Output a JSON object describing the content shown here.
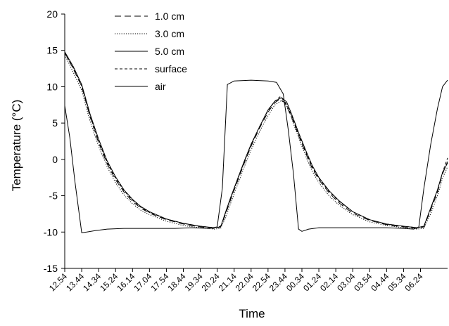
{
  "chart_data": {
    "type": "line",
    "xlabel": "Time",
    "ylabel": "Temperature (°C)",
    "ylim": [
      -15,
      20
    ],
    "yticks": [
      -15,
      -10,
      -5,
      0,
      5,
      10,
      15,
      20
    ],
    "x_tick_labels": [
      "12.54",
      "13.44",
      "14.34",
      "15.24",
      "16.14",
      "17.04",
      "17.54",
      "18.44",
      "19.34",
      "20.24",
      "21.14",
      "22.04",
      "22.54",
      "23.44",
      "00.34",
      "01.24",
      "02.14",
      "03.04",
      "03.54",
      "04.44",
      "05.34",
      "06.24"
    ],
    "xlim": [
      0,
      22.6
    ],
    "legend_position": "top-left",
    "grid": false,
    "series": [
      {
        "name": "1.0 cm",
        "dash": "long-dash",
        "points": [
          [
            0,
            14.7
          ],
          [
            0.5,
            12.5
          ],
          [
            1,
            10.0
          ],
          [
            1.5,
            5.8
          ],
          [
            2,
            2.3
          ],
          [
            2.5,
            -0.6
          ],
          [
            3,
            -2.8
          ],
          [
            3.5,
            -4.5
          ],
          [
            4,
            -5.8
          ],
          [
            4.5,
            -6.7
          ],
          [
            5,
            -7.4
          ],
          [
            6,
            -8.3
          ],
          [
            7,
            -8.9
          ],
          [
            8,
            -9.3
          ],
          [
            8.8,
            -9.5
          ],
          [
            9.2,
            -9.3
          ],
          [
            9.5,
            -7.5
          ],
          [
            9.8,
            -5.5
          ],
          [
            10.2,
            -3.0
          ],
          [
            10.6,
            -0.5
          ],
          [
            11,
            1.8
          ],
          [
            11.5,
            4.3
          ],
          [
            12,
            6.5
          ],
          [
            12.4,
            7.8
          ],
          [
            12.7,
            8.3
          ],
          [
            13,
            7.8
          ],
          [
            13.4,
            5.8
          ],
          [
            13.8,
            3.3
          ],
          [
            14.2,
            1.0
          ],
          [
            14.6,
            -1.2
          ],
          [
            15,
            -2.8
          ],
          [
            15.6,
            -4.6
          ],
          [
            16.2,
            -6.0
          ],
          [
            17,
            -7.4
          ],
          [
            18,
            -8.4
          ],
          [
            19,
            -9.0
          ],
          [
            20,
            -9.3
          ],
          [
            20.8,
            -9.5
          ],
          [
            21.2,
            -9.3
          ],
          [
            21.6,
            -7.0
          ],
          [
            22,
            -4.5
          ],
          [
            22.3,
            -2.0
          ],
          [
            22.6,
            -0.3
          ]
        ]
      },
      {
        "name": "3.0 cm",
        "dash": "dotted",
        "points": [
          [
            0,
            14.4
          ],
          [
            0.5,
            12.0
          ],
          [
            1,
            9.5
          ],
          [
            1.5,
            5.2
          ],
          [
            2,
            1.8
          ],
          [
            2.5,
            -1.0
          ],
          [
            3,
            -3.2
          ],
          [
            3.5,
            -4.9
          ],
          [
            4,
            -6.1
          ],
          [
            4.5,
            -7.0
          ],
          [
            5,
            -7.6
          ],
          [
            6,
            -8.5
          ],
          [
            7,
            -9.1
          ],
          [
            8,
            -9.4
          ],
          [
            8.8,
            -9.6
          ],
          [
            9.2,
            -9.5
          ],
          [
            9.5,
            -8.0
          ],
          [
            9.8,
            -6.0
          ],
          [
            10.2,
            -3.5
          ],
          [
            10.6,
            -1.0
          ],
          [
            11,
            1.3
          ],
          [
            11.5,
            3.8
          ],
          [
            12,
            6.0
          ],
          [
            12.4,
            7.5
          ],
          [
            12.8,
            8.1
          ],
          [
            13.1,
            7.4
          ],
          [
            13.4,
            5.6
          ],
          [
            13.8,
            3.0
          ],
          [
            14.2,
            0.6
          ],
          [
            14.6,
            -1.6
          ],
          [
            15,
            -3.2
          ],
          [
            15.6,
            -5.0
          ],
          [
            16.2,
            -6.3
          ],
          [
            17,
            -7.6
          ],
          [
            18,
            -8.6
          ],
          [
            19,
            -9.1
          ],
          [
            20,
            -9.4
          ],
          [
            20.8,
            -9.6
          ],
          [
            21.2,
            -9.5
          ],
          [
            21.6,
            -7.5
          ],
          [
            22,
            -5.0
          ],
          [
            22.3,
            -2.6
          ],
          [
            22.6,
            -1.0
          ]
        ]
      },
      {
        "name": "5.0 cm",
        "dash": "solid",
        "points": [
          [
            0,
            14.8
          ],
          [
            0.5,
            12.8
          ],
          [
            1,
            10.3
          ],
          [
            1.5,
            6.2
          ],
          [
            2,
            2.8
          ],
          [
            2.5,
            -0.2
          ],
          [
            3,
            -2.4
          ],
          [
            3.5,
            -4.2
          ],
          [
            4,
            -5.5
          ],
          [
            4.5,
            -6.5
          ],
          [
            5,
            -7.2
          ],
          [
            6,
            -8.2
          ],
          [
            7,
            -8.8
          ],
          [
            8,
            -9.2
          ],
          [
            8.8,
            -9.4
          ],
          [
            9.2,
            -9.3
          ],
          [
            9.5,
            -7.2
          ],
          [
            9.8,
            -5.2
          ],
          [
            10.2,
            -2.7
          ],
          [
            10.6,
            -0.2
          ],
          [
            11,
            2.1
          ],
          [
            11.5,
            4.5
          ],
          [
            12,
            6.8
          ],
          [
            12.4,
            8.0
          ],
          [
            12.8,
            8.5
          ],
          [
            13.1,
            7.9
          ],
          [
            13.4,
            6.2
          ],
          [
            13.8,
            3.7
          ],
          [
            14.2,
            1.4
          ],
          [
            14.6,
            -0.8
          ],
          [
            15,
            -2.5
          ],
          [
            15.6,
            -4.3
          ],
          [
            16.2,
            -5.7
          ],
          [
            17,
            -7.2
          ],
          [
            18,
            -8.3
          ],
          [
            19,
            -8.9
          ],
          [
            20,
            -9.2
          ],
          [
            20.8,
            -9.4
          ],
          [
            21.2,
            -9.2
          ],
          [
            21.6,
            -6.7
          ],
          [
            22,
            -4.2
          ],
          [
            22.3,
            -1.8
          ],
          [
            22.6,
            -0.5
          ]
        ]
      },
      {
        "name": "surface",
        "dash": "short-dash",
        "points": [
          [
            0,
            14.6
          ],
          [
            0.5,
            12.6
          ],
          [
            1,
            10.1
          ],
          [
            1.5,
            6.0
          ],
          [
            2,
            2.5
          ],
          [
            2.5,
            -0.4
          ],
          [
            3,
            -2.6
          ],
          [
            3.5,
            -4.3
          ],
          [
            4,
            -5.6
          ],
          [
            4.5,
            -6.6
          ],
          [
            5,
            -7.3
          ],
          [
            6,
            -8.2
          ],
          [
            7,
            -8.8
          ],
          [
            8,
            -9.2
          ],
          [
            8.8,
            -9.4
          ],
          [
            9.2,
            -9.2
          ],
          [
            9.5,
            -7.3
          ],
          [
            9.8,
            -5.3
          ],
          [
            10.2,
            -2.8
          ],
          [
            10.6,
            -0.3
          ],
          [
            11,
            2.0
          ],
          [
            11.5,
            4.5
          ],
          [
            12,
            6.7
          ],
          [
            12.4,
            8.0
          ],
          [
            12.7,
            8.6
          ],
          [
            13,
            8.0
          ],
          [
            13.4,
            6.0
          ],
          [
            13.8,
            3.5
          ],
          [
            14.2,
            1.2
          ],
          [
            14.6,
            -1.0
          ],
          [
            15,
            -2.6
          ],
          [
            15.6,
            -4.4
          ],
          [
            16.2,
            -5.8
          ],
          [
            17,
            -7.2
          ],
          [
            18,
            -8.3
          ],
          [
            19,
            -8.9
          ],
          [
            20,
            -9.2
          ],
          [
            20.8,
            -9.4
          ],
          [
            21.2,
            -9.2
          ],
          [
            21.6,
            -6.8
          ],
          [
            22,
            -4.3
          ],
          [
            22.3,
            -1.8
          ],
          [
            22.6,
            0.2
          ]
        ]
      },
      {
        "name": "air",
        "dash": "solid",
        "points": [
          [
            0,
            7.4
          ],
          [
            0.3,
            3.0
          ],
          [
            0.6,
            -3.0
          ],
          [
            1.0,
            -10.1
          ],
          [
            1.3,
            -10.0
          ],
          [
            1.8,
            -9.8
          ],
          [
            2.5,
            -9.6
          ],
          [
            3.5,
            -9.5
          ],
          [
            5,
            -9.5
          ],
          [
            6.5,
            -9.5
          ],
          [
            7.5,
            -9.4
          ],
          [
            8.5,
            -9.5
          ],
          [
            9.0,
            -9.3
          ],
          [
            9.3,
            -4.0
          ],
          [
            9.6,
            10.3
          ],
          [
            10,
            10.8
          ],
          [
            11,
            10.9
          ],
          [
            12,
            10.8
          ],
          [
            12.5,
            10.6
          ],
          [
            12.9,
            9.0
          ],
          [
            13.2,
            4.0
          ],
          [
            13.5,
            -2.0
          ],
          [
            13.8,
            -9.6
          ],
          [
            14.0,
            -9.9
          ],
          [
            14.4,
            -9.6
          ],
          [
            15,
            -9.4
          ],
          [
            16,
            -9.4
          ],
          [
            17,
            -9.4
          ],
          [
            18,
            -9.4
          ],
          [
            19,
            -9.4
          ],
          [
            20,
            -9.5
          ],
          [
            20.6,
            -9.6
          ],
          [
            20.9,
            -9.3
          ],
          [
            21.2,
            -4.0
          ],
          [
            21.6,
            2.0
          ],
          [
            22.0,
            7.0
          ],
          [
            22.3,
            10.0
          ],
          [
            22.6,
            10.9
          ]
        ]
      }
    ]
  }
}
